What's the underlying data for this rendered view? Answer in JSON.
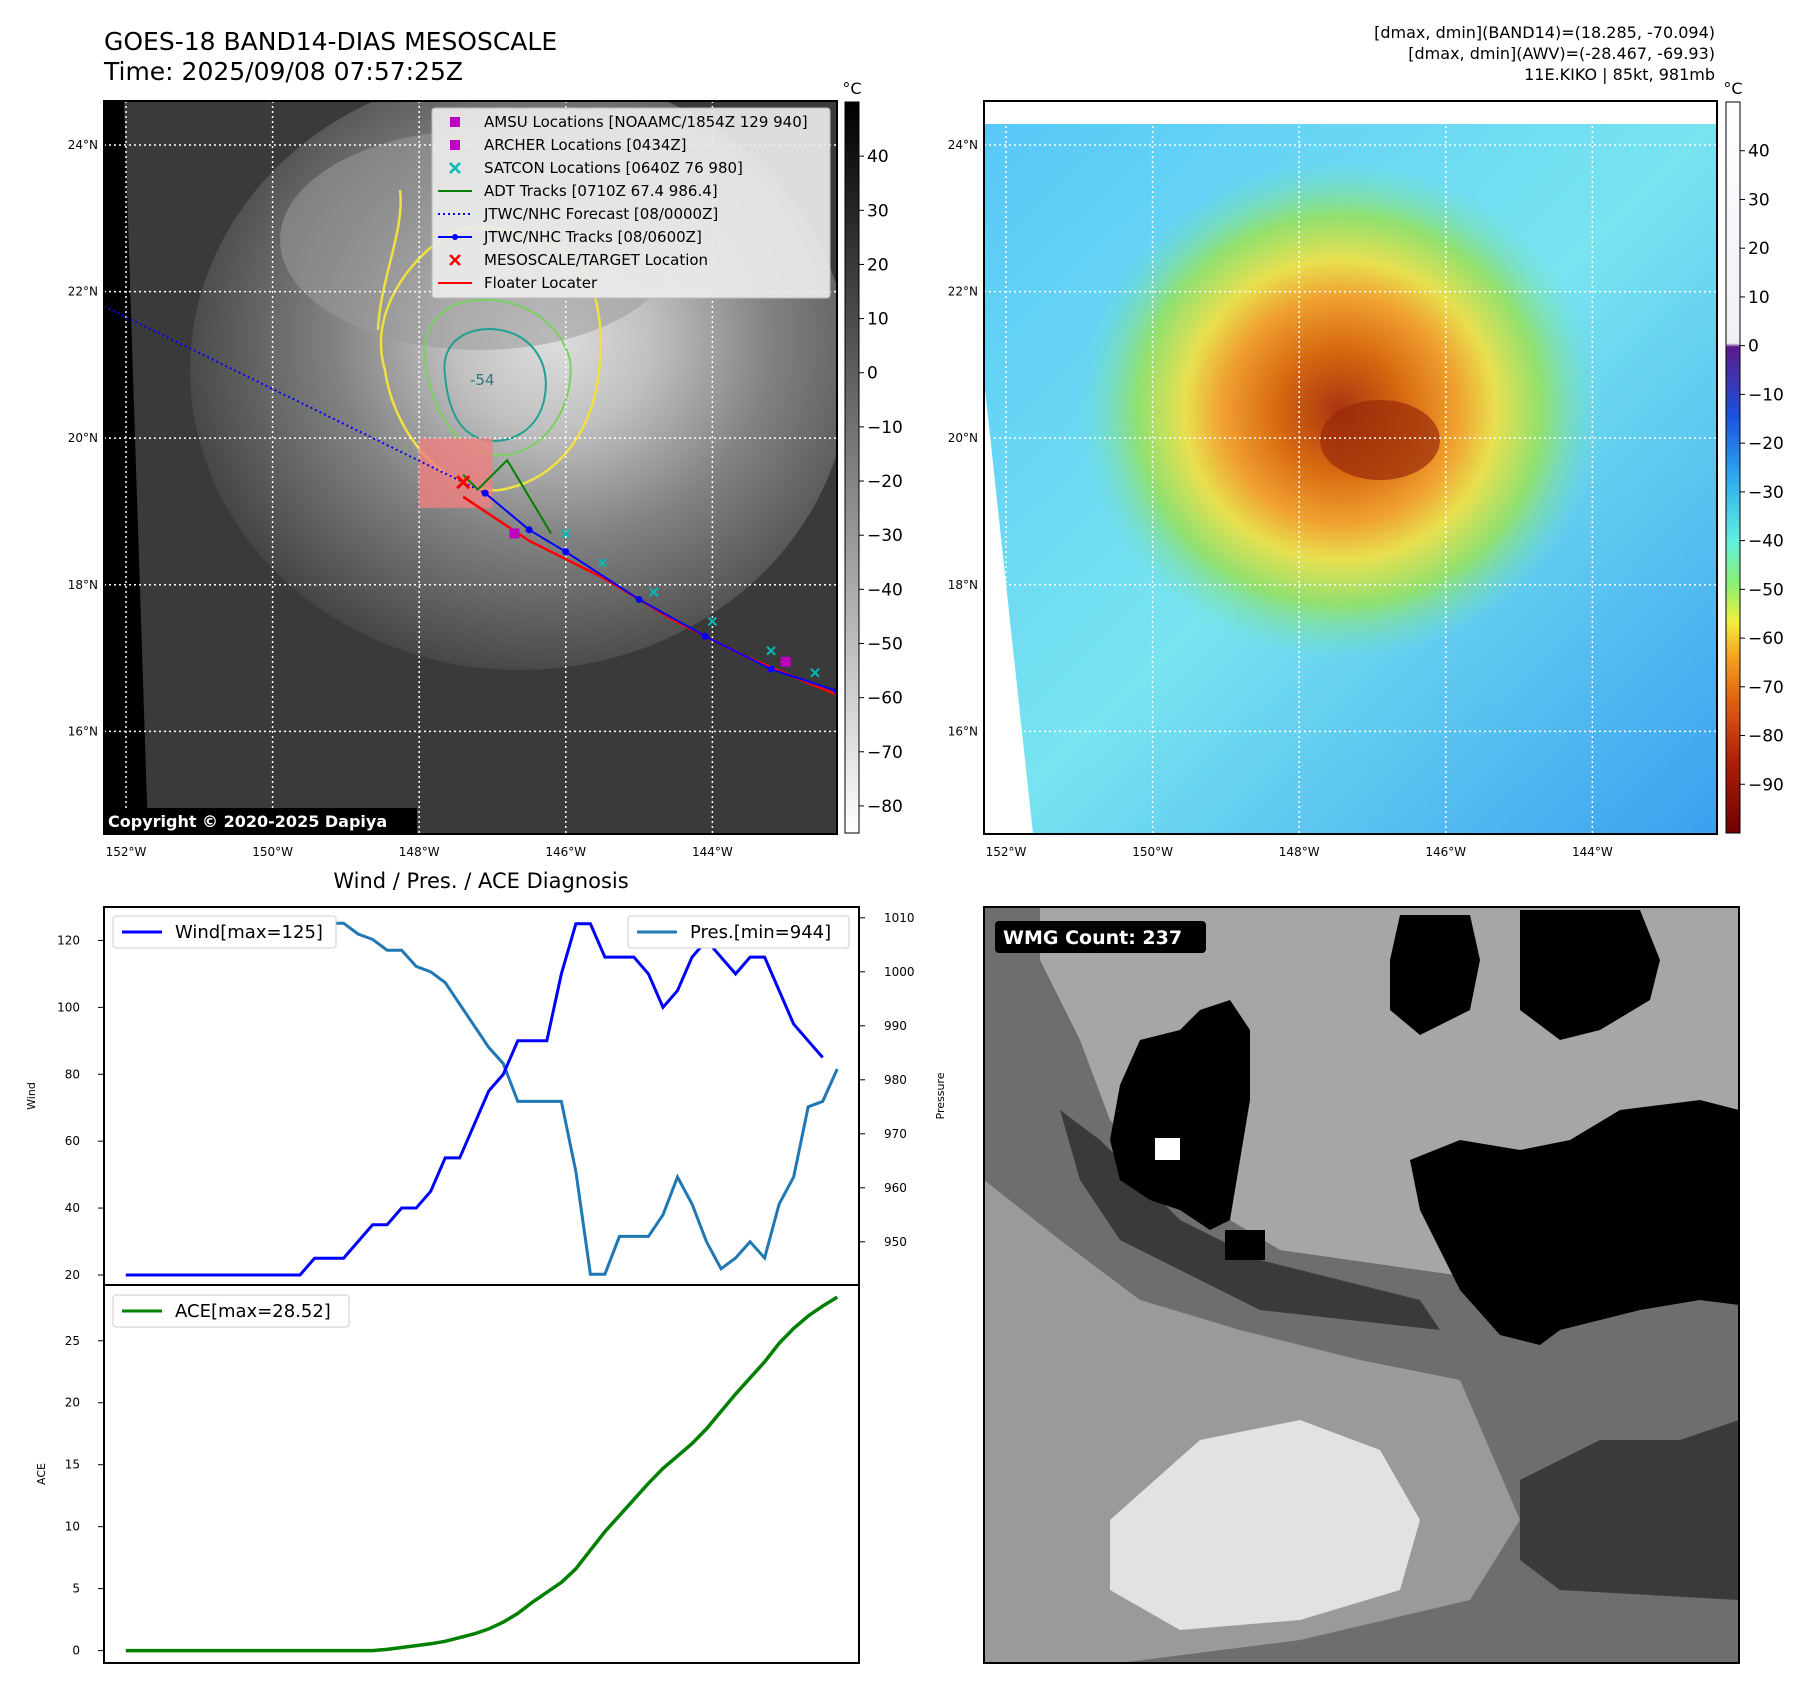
{
  "header": {
    "title_line1": "GOES-18 BAND14-DIAS MESOSCALE",
    "title_line2": "Time: 2025/09/08 07:57:25Z",
    "info_line1": "[dmax, dmin](BAND14)=(18.285, -70.094)",
    "info_line2": "[dmax, dmin](AWV)=(-28.467, -69.93)",
    "info_line3": "11E.KIKO | 85kt, 981mb"
  },
  "maps": {
    "lat_labels": [
      "24°N",
      "22°N",
      "20°N",
      "18°N",
      "16°N"
    ],
    "lat_values": [
      24,
      22,
      20,
      18,
      16
    ],
    "lon_labels": [
      "152°W",
      "150°W",
      "148°W",
      "146°W",
      "144°W"
    ],
    "lon_values": [
      -152,
      -150,
      -148,
      -146,
      -144
    ],
    "extent": {
      "lon_min": -152.3,
      "lon_max": -142.3,
      "lat_min": 14.6,
      "lat_max": 24.6
    },
    "copyright": "Copyright © 2020-2025 Dapiya",
    "contour_label": "-54",
    "colorbar_unit": "°C",
    "ir_colorbar_ticks": [
      "40",
      "30",
      "20",
      "10",
      "0",
      "−10",
      "−20",
      "−30",
      "−40",
      "−50",
      "−60",
      "−70",
      "−80"
    ],
    "ir_colorbar_values": [
      40,
      30,
      20,
      10,
      0,
      -10,
      -20,
      -30,
      -40,
      -50,
      -60,
      -70,
      -80
    ],
    "ir_colorbar_range": [
      -85,
      50
    ],
    "wv_colorbar_ticks": [
      "40",
      "30",
      "20",
      "10",
      "0",
      "−10",
      "−20",
      "−30",
      "−40",
      "−50",
      "−60",
      "−70",
      "−80",
      "−90"
    ],
    "wv_colorbar_values": [
      40,
      30,
      20,
      10,
      0,
      -10,
      -20,
      -30,
      -40,
      -50,
      -60,
      -70,
      -80,
      -90
    ],
    "wv_colorbar_range": [
      -100,
      50
    ],
    "legend": [
      {
        "label": "AMSU Locations [NOAAMC/1854Z 129 940]",
        "color": "#c000c0",
        "marker": "square"
      },
      {
        "label": "ARCHER Locations [0434Z]",
        "color": "#c000c0",
        "marker": "square"
      },
      {
        "label": "SATCON Locations [0640Z 76 980]",
        "color": "#00b8b8",
        "marker": "x"
      },
      {
        "label": "ADT Tracks [0710Z 67.4 986.4]",
        "color": "#008000",
        "marker": "line"
      },
      {
        "label": "JTWC/NHC Forecast [08/0000Z]",
        "color": "#0000ff",
        "marker": "dotted"
      },
      {
        "label": "JTWC/NHC Tracks [08/0600Z]",
        "color": "#0000ff",
        "marker": "line-dot"
      },
      {
        "label": "MESOSCALE/TARGET Location",
        "color": "#ff0000",
        "marker": "x"
      },
      {
        "label": "Floater Locater",
        "color": "#ff0000",
        "marker": "line"
      }
    ],
    "jtwc_track": [
      [
        -142.3,
        16.55
      ],
      [
        -143.2,
        16.85
      ],
      [
        -144.1,
        17.3
      ],
      [
        -145.0,
        17.8
      ],
      [
        -146.0,
        18.45
      ],
      [
        -146.5,
        18.75
      ],
      [
        -147.1,
        19.25
      ]
    ],
    "forecast_line": [
      [
        -152.3,
        21.8
      ],
      [
        -147.1,
        19.25
      ]
    ],
    "floater_track": [
      [
        -142.3,
        16.5
      ],
      [
        -143.5,
        17.0
      ],
      [
        -144.5,
        17.5
      ],
      [
        -145.5,
        18.1
      ],
      [
        -146.5,
        18.6
      ],
      [
        -147.4,
        19.2
      ]
    ],
    "adt_track": [
      [
        -146.2,
        18.7
      ],
      [
        -146.5,
        19.2
      ],
      [
        -146.8,
        19.7
      ],
      [
        -147.0,
        19.5
      ],
      [
        -147.2,
        19.3
      ],
      [
        -147.4,
        19.5
      ]
    ],
    "satcon_points": [
      [
        -146.0,
        18.7
      ],
      [
        -145.5,
        18.3
      ],
      [
        -144.8,
        17.9
      ],
      [
        -144.0,
        17.5
      ],
      [
        -143.2,
        17.1
      ],
      [
        -142.6,
        16.8
      ]
    ],
    "amsu_point": [
      -146.7,
      18.7
    ],
    "archer_point": [
      -143.0,
      16.95
    ],
    "target_point": [
      -147.4,
      19.4
    ],
    "target_box": {
      "lon": [
        -148.0,
        -147.0
      ],
      "lat": [
        19.05,
        20.0
      ]
    }
  },
  "wmg": {
    "label": "WMG Count: 237"
  },
  "diag": {
    "title": "Wind / Pres. / ACE Diagnosis",
    "wind_ylabel": "Wind",
    "pres_ylabel": "Pressure",
    "ace_ylabel": "ACE"
  },
  "chart_data": [
    {
      "type": "line",
      "title": "Wind / Pres. / ACE Diagnosis",
      "ylabel": "Wind",
      "y2label": "Pressure",
      "ylim": [
        17,
        130
      ],
      "y2lim": [
        942,
        1012
      ],
      "yticks": [
        20,
        40,
        60,
        80,
        100,
        120
      ],
      "y2ticks": [
        950,
        960,
        970,
        980,
        990,
        1000,
        1010
      ],
      "x": [
        0,
        1,
        2,
        3,
        4,
        5,
        6,
        7,
        8,
        9,
        10,
        11,
        12,
        13,
        14,
        15,
        16,
        17,
        18,
        19,
        20,
        21,
        22,
        23,
        24,
        25,
        26,
        27,
        28,
        29,
        30,
        31,
        32,
        33,
        34,
        35,
        36,
        37,
        38,
        39,
        40,
        41,
        42,
        43,
        44,
        45,
        46,
        47,
        48,
        49
      ],
      "series": [
        {
          "name": "Wind[max=125]",
          "axis": "left",
          "color": "#0000ff",
          "values": [
            20,
            20,
            20,
            20,
            20,
            20,
            20,
            20,
            20,
            20,
            20,
            20,
            20,
            25,
            25,
            25,
            30,
            35,
            35,
            40,
            40,
            45,
            55,
            55,
            65,
            75,
            80,
            90,
            90,
            90,
            110,
            125,
            125,
            115,
            115,
            115,
            110,
            100,
            105,
            115,
            120,
            115,
            110,
            115,
            115,
            105,
            95,
            90,
            85,
            null
          ]
        },
        {
          "name": "Pres.[min=944]",
          "axis": "right",
          "color": "#1f77b4",
          "values": [
            1010,
            1010,
            1010,
            1010,
            1010,
            1010,
            1010,
            1010,
            1010,
            1010,
            1010,
            1010,
            1010,
            1009,
            1009,
            1009,
            1007,
            1006,
            1004,
            1004,
            1001,
            1000,
            998,
            994,
            990,
            986,
            983,
            976,
            976,
            976,
            976,
            963,
            944,
            944,
            951,
            951,
            951,
            955,
            962,
            957,
            950,
            945,
            947,
            950,
            947,
            957,
            962,
            975,
            976,
            982
          ]
        }
      ],
      "legend": [
        {
          "label": "Wind[max=125]",
          "position": "upper left"
        },
        {
          "label": "Pres.[min=944]",
          "position": "upper right"
        }
      ]
    },
    {
      "type": "line",
      "ylabel": "ACE",
      "ylim": [
        -1,
        29.5
      ],
      "yticks": [
        0,
        5,
        10,
        15,
        20,
        25
      ],
      "x": [
        0,
        1,
        2,
        3,
        4,
        5,
        6,
        7,
        8,
        9,
        10,
        11,
        12,
        13,
        14,
        15,
        16,
        17,
        18,
        19,
        20,
        21,
        22,
        23,
        24,
        25,
        26,
        27,
        28,
        29,
        30,
        31,
        32,
        33,
        34,
        35,
        36,
        37,
        38,
        39,
        40,
        41,
        42,
        43,
        44,
        45,
        46,
        47,
        48,
        49
      ],
      "series": [
        {
          "name": "ACE[max=28.52]",
          "color": "#008000",
          "values": [
            0,
            0,
            0,
            0,
            0,
            0,
            0,
            0,
            0,
            0,
            0,
            0,
            0,
            0,
            0,
            0,
            0,
            0,
            0.1,
            0.25,
            0.4,
            0.55,
            0.75,
            1.05,
            1.35,
            1.75,
            2.3,
            3.0,
            3.9,
            4.7,
            5.5,
            6.6,
            8.1,
            9.6,
            10.9,
            12.2,
            13.5,
            14.7,
            15.7,
            16.7,
            17.9,
            19.3,
            20.7,
            22.0,
            23.3,
            24.8,
            26.0,
            27.0,
            27.8,
            28.52
          ]
        }
      ],
      "legend": [
        {
          "label": "ACE[max=28.52]",
          "position": "upper left"
        }
      ]
    }
  ]
}
